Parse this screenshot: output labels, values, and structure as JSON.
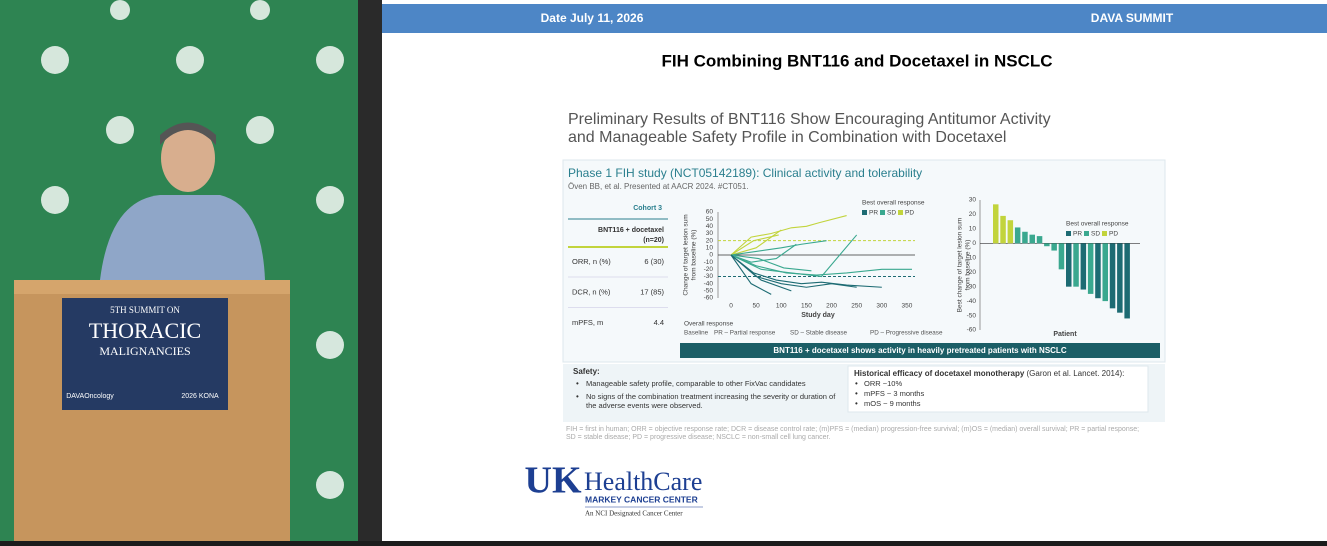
{
  "header": {
    "date": "Date July 11, 2026",
    "event": "DAVA SUMMIT"
  },
  "podium": {
    "edition": "5TH SUMMIT ON",
    "line1": "THORACIC",
    "line2": "MALIGNANCIES",
    "brand": "DAVAOncology",
    "kona": "2026 KONA"
  },
  "slide": {
    "title": "FIH Combining BNT116 and Docetaxel in NSCLC",
    "subtitle": [
      "Preliminary Results of BNT116 Show Encouraging Antitumor Activity",
      "and Manageable Safety Profile in Combination with Docetaxel"
    ],
    "panel_title": "Phase 1 FIH study (NCT05142189): Clinical activity and tolerability",
    "citation": "Öven BB, et al. Presented at AACR 2024. #CT051.",
    "table": {
      "header": [
        "Cohort 3",
        "BNT116 + docetaxel",
        "(n=20)"
      ],
      "rows": [
        [
          "ORR, n (%)",
          "6 (30)"
        ],
        [
          "DCR, n (%)",
          "17 (85)"
        ],
        [
          "mPFS, m",
          "4.4"
        ]
      ]
    },
    "overall_response": {
      "title": "Overall response",
      "items": [
        "Baseline",
        "PR – Partial response",
        "SD – Stable disease",
        "PD – Progressive disease"
      ]
    },
    "banner": "BNT116 + docetaxel shows activity in heavily pretreated patients with NSCLC",
    "safety": {
      "title": "Safety:",
      "bullets": [
        [
          "Manageable safety profile, comparable to other FixVac candidates"
        ],
        [
          "No signs of the combination treatment increasing the severity or duration of",
          "the adverse events were observed."
        ]
      ]
    },
    "historical": {
      "title": "Historical efficacy of docetaxel monotherapy",
      "source": " (Garon et al. Lancet. 2014):",
      "bullets": [
        "ORR ~10%",
        "mPFS ~ 3 months",
        "mOS ~ 9 months"
      ]
    },
    "footnote": [
      "FIH = first in human; ORR = objective response rate; DCR = disease control rate; (m)PFS = (median) progression-free survival; (m)OS = (median) overall survival; PR = partial response;",
      "SD = stable disease; PD = progressive disease; NSCLC = non-small cell lung cancer."
    ]
  },
  "logo": {
    "mark": "UK",
    "name": "HealthCare",
    "center": "MARKEY CANCER CENTER",
    "tagline": "An NCI Designated Cancer Center"
  },
  "chart_data": [
    {
      "type": "line",
      "ylabel": [
        "Change of target lesion sum",
        "from baseline (%)"
      ],
      "xlabel": "Study day",
      "legend_title": "Best overall response",
      "groups": [
        {
          "name": "PR",
          "color": "#1d6b73"
        },
        {
          "name": "SD",
          "color": "#3aa88f"
        },
        {
          "name": "PD",
          "color": "#c2d43c"
        }
      ],
      "xlim": [
        0,
        366
      ],
      "xticks": [
        0,
        50,
        100,
        150,
        200,
        250,
        300,
        350
      ],
      "ylim": [
        -60,
        60
      ],
      "yticks": [
        60,
        50,
        40,
        30,
        20,
        10,
        0,
        -10,
        -20,
        -30,
        -40,
        -50,
        -60
      ],
      "reference_lines": [
        {
          "value": 20,
          "color": "#c2d43c"
        },
        {
          "value": -30,
          "color": "#1d6b73"
        }
      ],
      "series": [
        {
          "group": 2,
          "x": [
            0,
            50,
            100
          ],
          "values": [
            0,
            10,
            35
          ]
        },
        {
          "group": 2,
          "x": [
            0,
            40,
            80,
            120,
            150,
            175,
            230
          ],
          "values": [
            0,
            25,
            30,
            38,
            40,
            45,
            55
          ]
        },
        {
          "group": 2,
          "x": [
            0,
            45,
            95
          ],
          "values": [
            0,
            20,
            28
          ]
        },
        {
          "group": 1,
          "x": [
            0,
            50,
            100,
            140,
            190
          ],
          "values": [
            0,
            5,
            10,
            15,
            20
          ]
        },
        {
          "group": 1,
          "x": [
            0,
            40,
            90,
            130
          ],
          "values": [
            0,
            -10,
            -5,
            15
          ]
        },
        {
          "group": 1,
          "x": [
            0,
            60,
            120,
            180,
            250
          ],
          "values": [
            0,
            -20,
            -25,
            -30,
            28
          ]
        },
        {
          "group": 1,
          "x": [
            0,
            50,
            110,
            170,
            230,
            300,
            360
          ],
          "values": [
            0,
            -15,
            -25,
            -28,
            -25,
            -20,
            -20
          ]
        },
        {
          "group": 1,
          "x": [
            0,
            55,
            105,
            160
          ],
          "values": [
            0,
            -5,
            -18,
            -22
          ]
        },
        {
          "group": 0,
          "x": [
            0,
            50,
            100,
            150,
            200,
            250
          ],
          "values": [
            0,
            -30,
            -40,
            -45,
            -40,
            -45
          ]
        },
        {
          "group": 0,
          "x": [
            0,
            60,
            120
          ],
          "values": [
            0,
            -35,
            -50
          ]
        },
        {
          "group": 0,
          "x": [
            0,
            45,
            90,
            140,
            180,
            230,
            300
          ],
          "values": [
            0,
            -25,
            -35,
            -40,
            -38,
            -42,
            -45
          ]
        },
        {
          "group": 0,
          "x": [
            0,
            40,
            80
          ],
          "values": [
            0,
            -40,
            -55
          ]
        }
      ]
    },
    {
      "type": "bar",
      "ylabel": [
        "Best change of target lesion sum",
        "from baseline (%)"
      ],
      "xlabel": "Patient",
      "legend_title": "Best overall response",
      "groups": [
        {
          "name": "PR",
          "color": "#1d6b73"
        },
        {
          "name": "SD",
          "color": "#3aa88f"
        },
        {
          "name": "PD",
          "color": "#c2d43c"
        }
      ],
      "ylim": [
        -60,
        30
      ],
      "yticks": [
        30,
        20,
        10,
        0,
        -10,
        -20,
        -30,
        -40,
        -50,
        -60
      ],
      "values": [
        27,
        19,
        16,
        11,
        8,
        6,
        5,
        -2,
        -5,
        -18,
        -30,
        -30,
        -32,
        -35,
        -38,
        -40,
        -45,
        -48,
        -52
      ],
      "responses": [
        2,
        2,
        2,
        1,
        1,
        1,
        1,
        1,
        1,
        1,
        0,
        1,
        0,
        1,
        0,
        1,
        0,
        0,
        0
      ]
    }
  ]
}
